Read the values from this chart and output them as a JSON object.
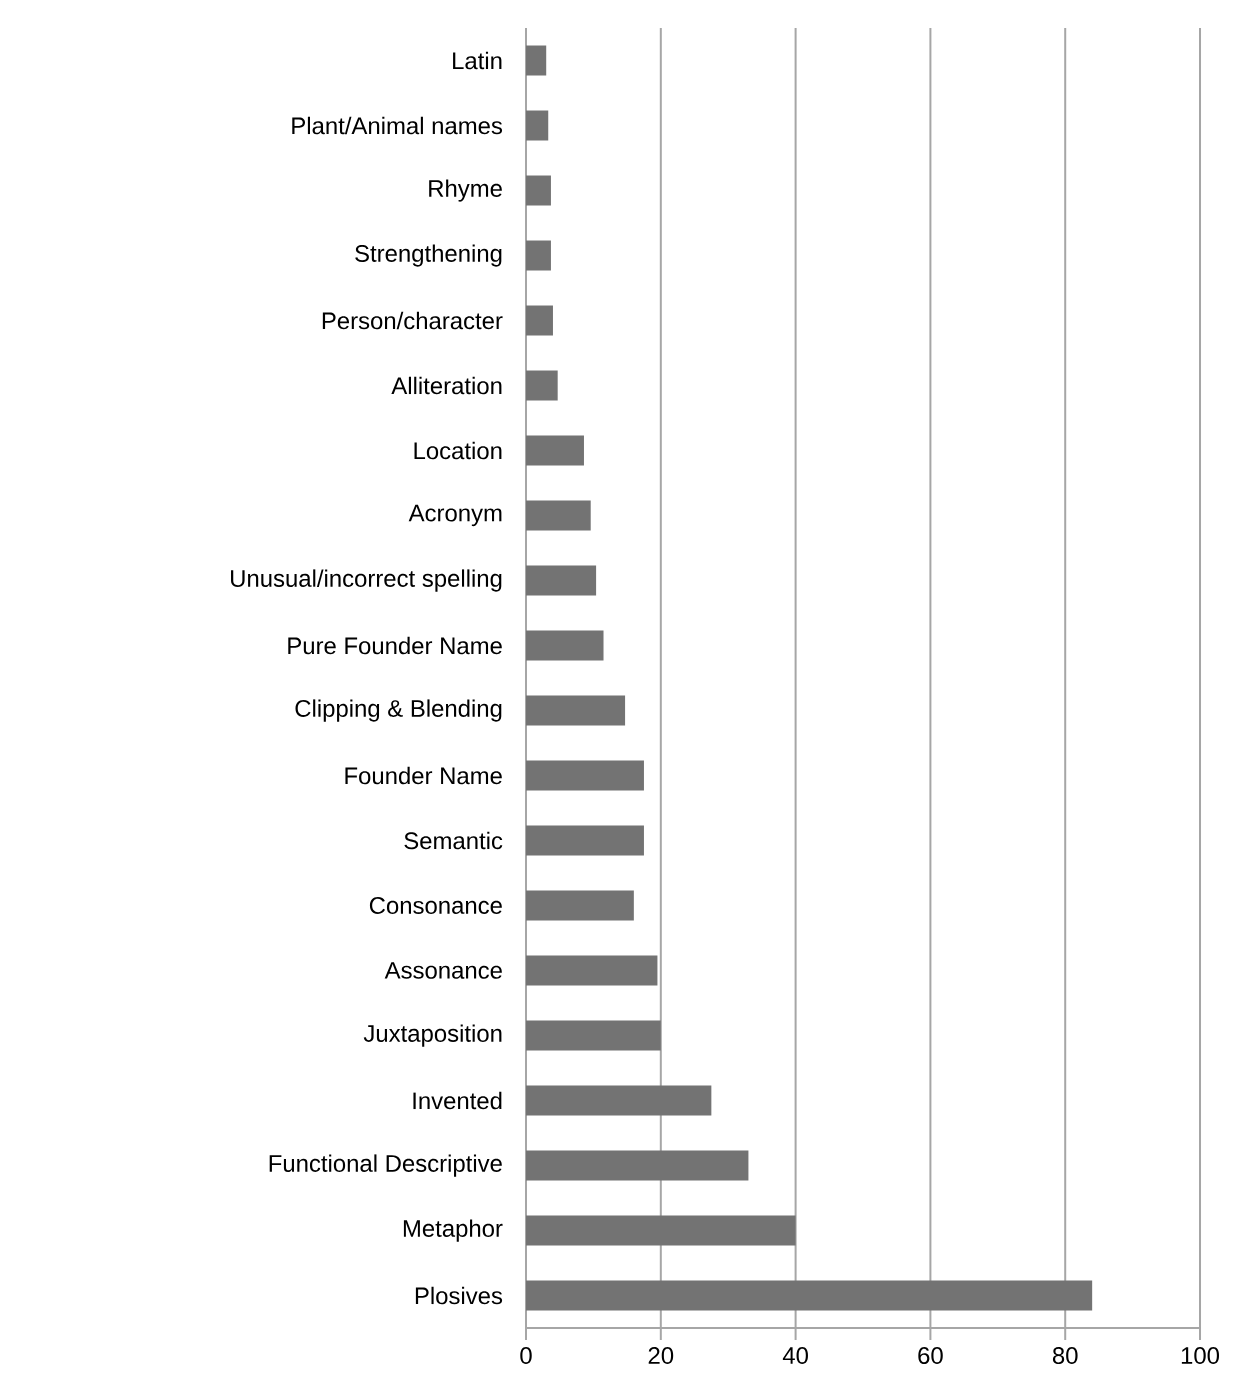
{
  "chart_data": {
    "type": "bar",
    "orientation": "horizontal",
    "categories": [
      "Latin",
      "Plant/Animal names",
      "Rhyme",
      "Strengthening",
      "Person/character",
      "Alliteration",
      "Location",
      "Acronym",
      "Unusual/incorrect spelling",
      "Pure Founder Name",
      "Clipping & Blending",
      "Founder Name",
      "Semantic",
      "Consonance",
      "Assonance",
      "Juxtaposition",
      "Invented",
      "Functional Descriptive",
      "Metaphor",
      "Plosives"
    ],
    "values": [
      3,
      3.3,
      3.7,
      3.7,
      4,
      4.7,
      8.6,
      9.6,
      10.4,
      11.5,
      14.7,
      17.5,
      17.5,
      16,
      19.5,
      20,
      27.5,
      33,
      40,
      84
    ],
    "color": "#737373",
    "xlim": [
      0,
      100
    ],
    "xticks": [
      0,
      20,
      40,
      60,
      80,
      100
    ],
    "grid": "x"
  }
}
